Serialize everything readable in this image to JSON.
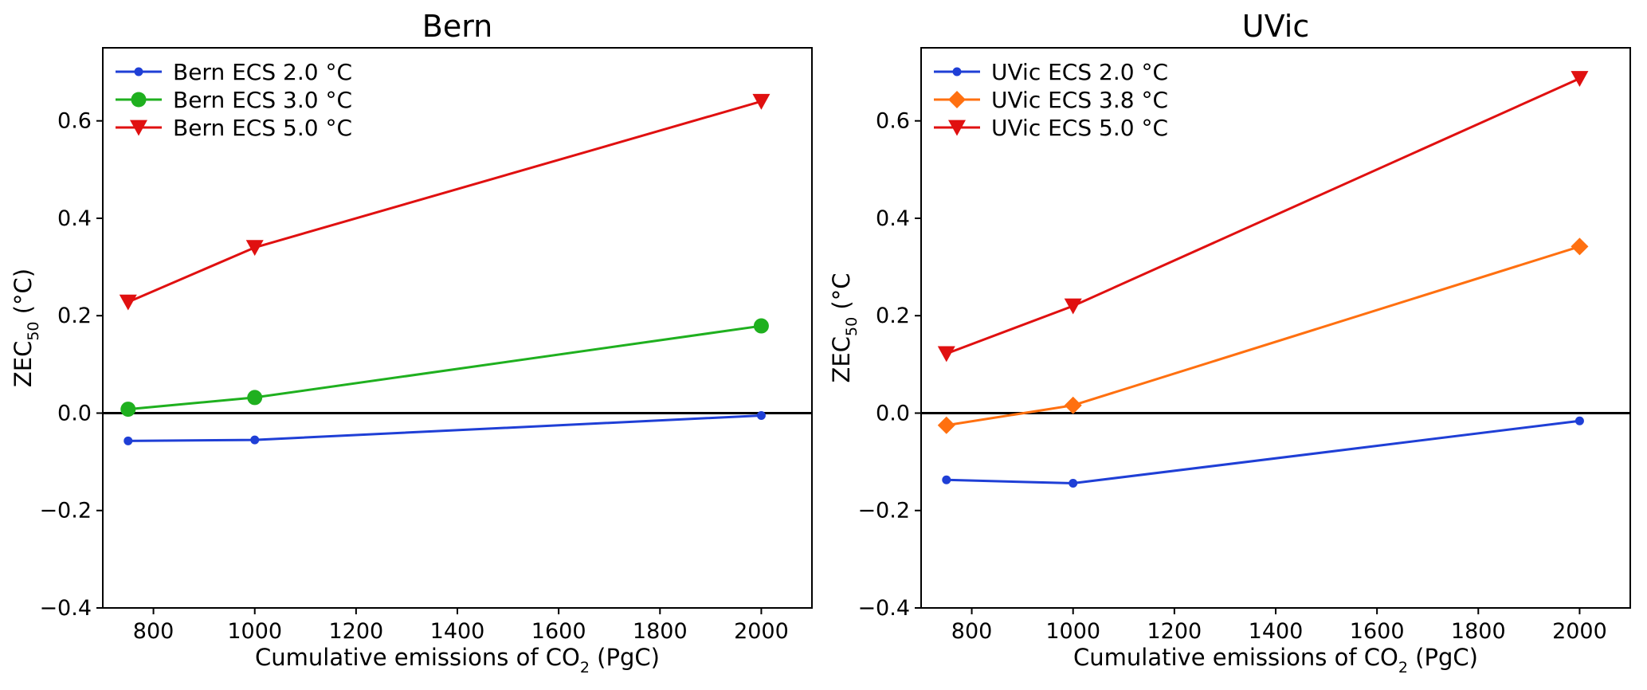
{
  "chart_data": [
    {
      "type": "line",
      "title": "Bern",
      "xlabel": {
        "main": "Cumulative emissions of CO",
        "sub": "2",
        "unit": " (PgC)"
      },
      "ylabel": {
        "main": "ZEC",
        "sub": "50",
        "unit": " (°C)"
      },
      "xlim": [
        700,
        2100
      ],
      "ylim": [
        -0.4,
        0.75
      ],
      "xticks": [
        800,
        1000,
        1200,
        1400,
        1600,
        1800,
        2000
      ],
      "yticks": [
        -0.4,
        -0.2,
        0.0,
        0.2,
        0.4,
        0.6
      ],
      "ytick_labels": [
        "−0.4",
        "−0.2",
        "0.0",
        "0.2",
        "0.4",
        "0.6"
      ],
      "zero_line": true,
      "grid": false,
      "legend_position": "upper-left",
      "x": [
        750,
        1000,
        2000
      ],
      "series": [
        {
          "name": "Bern ECS 2.0 °C",
          "color": "#1f3fd6",
          "marker": "dot",
          "values": [
            -0.057,
            -0.055,
            -0.005
          ]
        },
        {
          "name": "Bern ECS 3.0 °C",
          "color": "#1fb01f",
          "marker": "circle",
          "values": [
            0.008,
            0.032,
            0.179
          ]
        },
        {
          "name": "Bern ECS 5.0 °C",
          "color": "#e01010",
          "marker": "triangle-down",
          "values": [
            0.228,
            0.34,
            0.64
          ]
        }
      ]
    },
    {
      "type": "line",
      "title": "UVic",
      "xlabel": {
        "main": "Cumulative emissions of CO",
        "sub": "2",
        "unit": " (PgC)"
      },
      "ylabel": {
        "main": "ZEC",
        "sub": "50",
        "unit": " (°C"
      },
      "xlim": [
        700,
        2100
      ],
      "ylim": [
        -0.4,
        0.75
      ],
      "xticks": [
        800,
        1000,
        1200,
        1400,
        1600,
        1800,
        2000
      ],
      "yticks": [
        -0.4,
        -0.2,
        0.0,
        0.2,
        0.4,
        0.6
      ],
      "ytick_labels": [
        "−0.4",
        "−0.2",
        "0.0",
        "0.2",
        "0.4",
        "0.6"
      ],
      "zero_line": true,
      "grid": false,
      "legend_position": "upper-left",
      "x": [
        750,
        1000,
        2000
      ],
      "series": [
        {
          "name": "UVic ECS 2.0 °C",
          "color": "#1f3fd6",
          "marker": "dot",
          "values": [
            -0.137,
            -0.144,
            -0.016
          ]
        },
        {
          "name": "UVic ECS 3.8 °C",
          "color": "#ff7010",
          "marker": "diamond",
          "values": [
            -0.025,
            0.016,
            0.342
          ]
        },
        {
          "name": "UVic ECS 5.0 °C",
          "color": "#e01010",
          "marker": "triangle-down",
          "values": [
            0.122,
            0.22,
            0.687
          ]
        }
      ]
    }
  ]
}
